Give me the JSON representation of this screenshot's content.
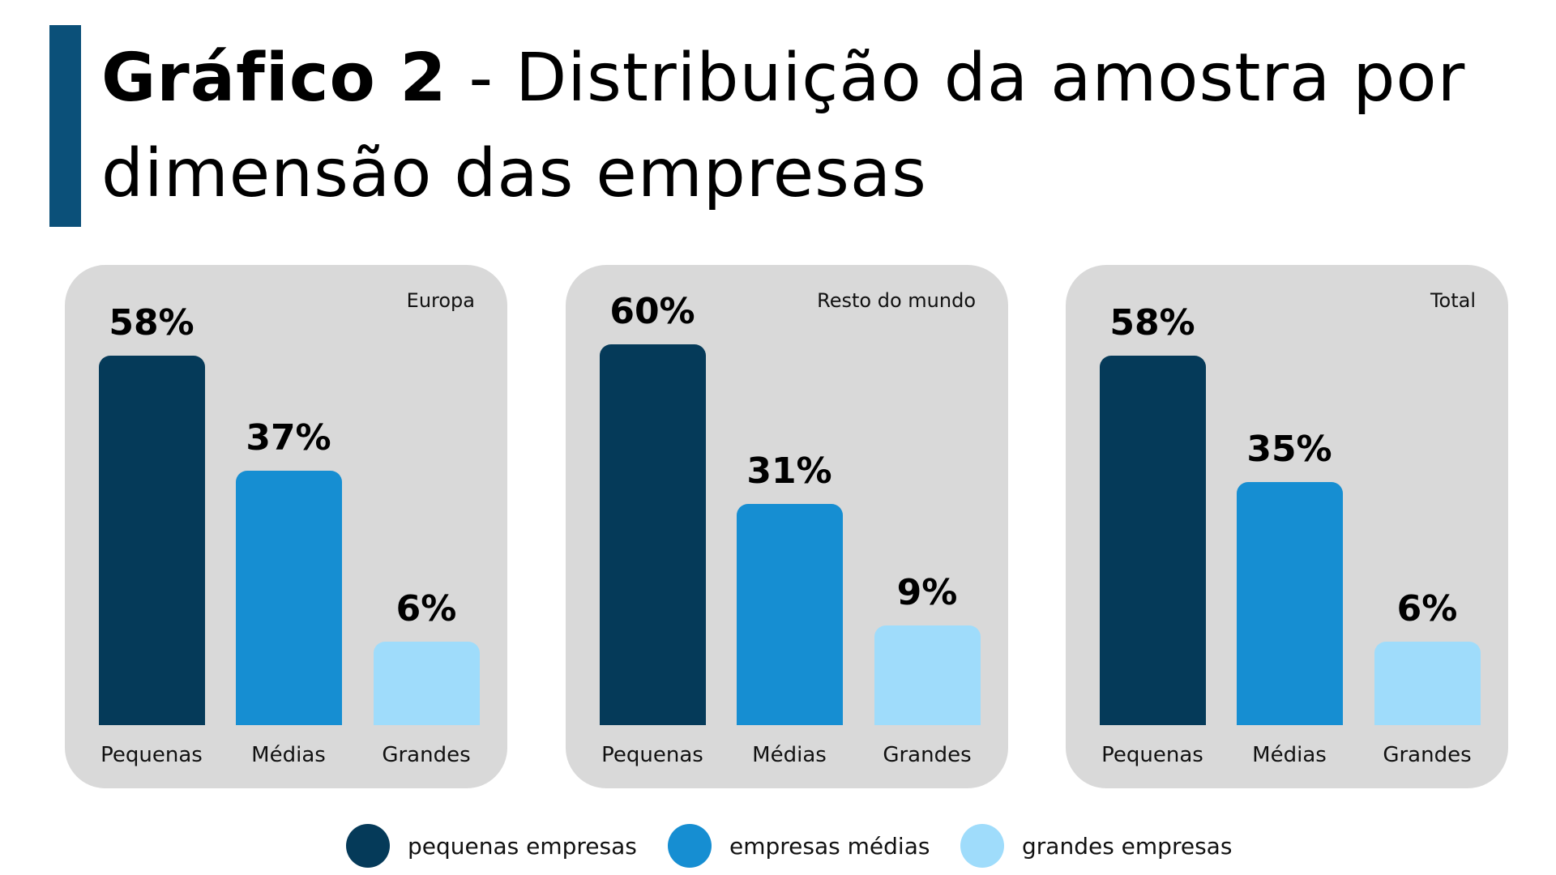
{
  "title": {
    "bold": "Gráfico 2",
    "rest": " - Distribuição da amostra por dimensão das empresas"
  },
  "colors": {
    "pequenas": "#053a59",
    "medias": "#168ed2",
    "grandes": "#9fdcfb",
    "panel": "#d9d9d9",
    "accent": "#0b5079"
  },
  "chart_data": [
    {
      "type": "bar",
      "title": "Europa",
      "categories": [
        "Pequenas",
        "Médias",
        "Grandes"
      ],
      "values": [
        58,
        37,
        6
      ],
      "value_labels": [
        "58%",
        "37%",
        "6%"
      ],
      "ylabel": "%",
      "ylim": [
        0,
        100
      ],
      "grid": false
    },
    {
      "type": "bar",
      "title": "Resto do mundo",
      "categories": [
        "Pequenas",
        "Médias",
        "Grandes"
      ],
      "values": [
        60,
        31,
        9
      ],
      "value_labels": [
        "60%",
        "31%",
        "9%"
      ],
      "ylabel": "%",
      "ylim": [
        0,
        100
      ],
      "grid": false
    },
    {
      "type": "bar",
      "title": "Total",
      "categories": [
        "Pequenas",
        "Médias",
        "Grandes"
      ],
      "values": [
        58,
        35,
        6
      ],
      "value_labels": [
        "58%",
        "35%",
        "6%"
      ],
      "ylabel": "%",
      "ylim": [
        0,
        100
      ],
      "grid": false
    }
  ],
  "legend": {
    "position": "bottom",
    "items": [
      "pequenas empresas",
      "empresas médias",
      "grandes empresas"
    ]
  }
}
